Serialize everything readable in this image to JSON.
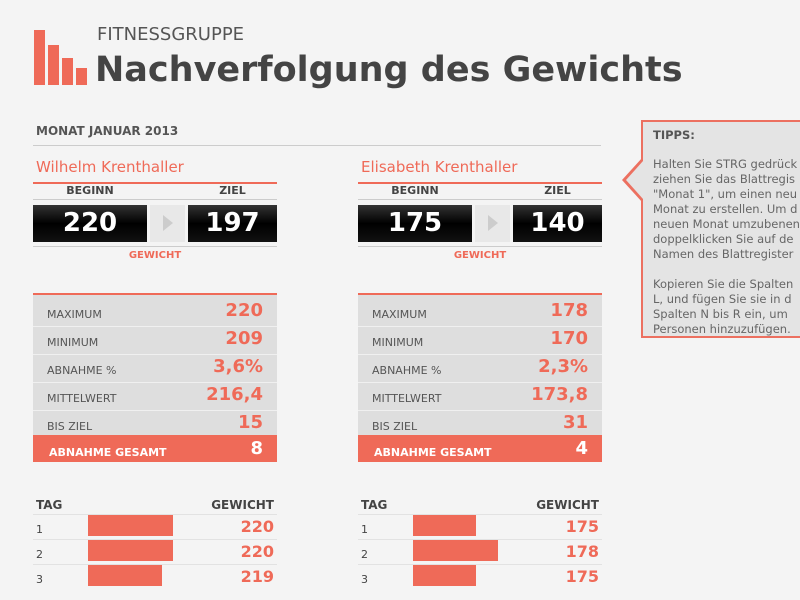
{
  "header": {
    "group": "FITNESSGRUPPE",
    "title": "Nachverfolgung des Gewichts"
  },
  "month": "MONAT JANUAR 2013",
  "tips": {
    "title": "TIPPS:",
    "paragraphs": [
      [
        "Halten Sie STRG gedrück",
        "ziehen Sie das Blattregis",
        "\"Monat 1\", um einen neu",
        "Monat zu erstellen. Um d",
        "neuen Monat umzubenen",
        "doppelklicken Sie auf de",
        "Namen des Blattregister"
      ],
      [
        "Kopieren Sie die Spalten",
        "L, und fügen Sie sie in d",
        "Spalten N bis R ein, um",
        "Personen hinzuzufügen."
      ]
    ]
  },
  "labels": {
    "start": "BEGINN",
    "goal": "ZIEL",
    "weight": "GEWICHT",
    "day": "TAG",
    "day_weight": "GEWICHT"
  },
  "people": [
    {
      "name": "Wilhelm Krenthaller",
      "start": 220,
      "goal": 197,
      "stats": [
        {
          "label": "MAXIMUM",
          "value": 220
        },
        {
          "label": "MINIMUM",
          "value": 209
        },
        {
          "label": "ABNAHME %",
          "value": "3,6%"
        },
        {
          "label": "MITTELWERT",
          "value": "216,4"
        },
        {
          "label": "BIS ZIEL",
          "value": 15
        }
      ],
      "total": {
        "label": "ABNAHME GESAMT",
        "value": 8
      },
      "days": [
        {
          "day": 1,
          "weight": 220
        },
        {
          "day": 2,
          "weight": 220
        },
        {
          "day": 3,
          "weight": 219
        }
      ]
    },
    {
      "name": "Elisabeth Krenthaller",
      "start": 175,
      "goal": 140,
      "stats": [
        {
          "label": "MAXIMUM",
          "value": 178
        },
        {
          "label": "MINIMUM",
          "value": 170
        },
        {
          "label": "ABNAHME %",
          "value": "2,3%"
        },
        {
          "label": "MITTELWERT",
          "value": "173,8"
        },
        {
          "label": "BIS ZIEL",
          "value": 31
        }
      ],
      "total": {
        "label": "ABNAHME GESAMT",
        "value": 4
      },
      "days": [
        {
          "day": 1,
          "weight": 175
        },
        {
          "day": 2,
          "weight": 178
        },
        {
          "day": 3,
          "weight": 175
        }
      ]
    }
  ]
}
